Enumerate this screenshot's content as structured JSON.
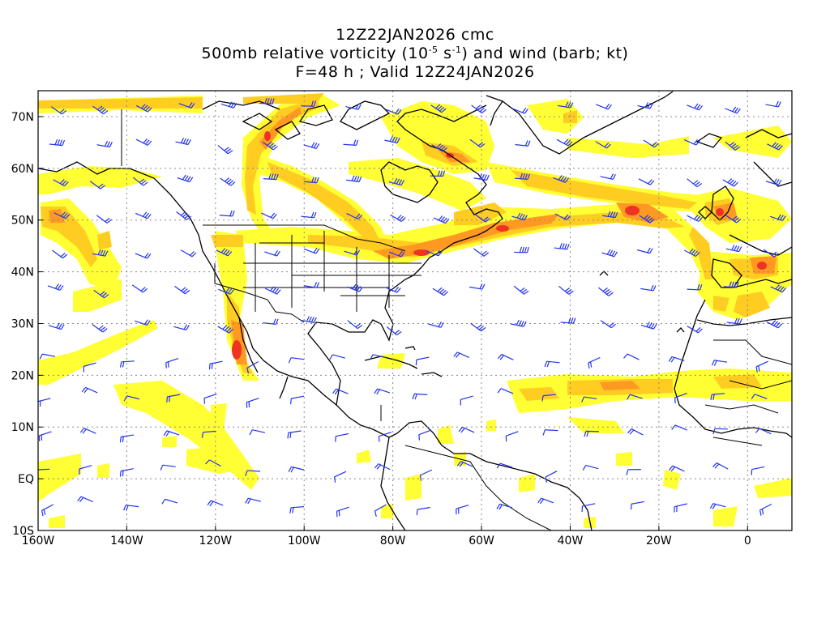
{
  "header": {
    "line1": "12Z22JAN2026 cmc",
    "line2_prefix": "500mb relative vorticity (10",
    "line2_exp1": "-5",
    "line2_mid": " s",
    "line2_exp2": "-1",
    "line2_suffix": ") and wind (barb; kt)",
    "line3": "F=48 h ; Valid 12Z24JAN2026"
  },
  "axes": {
    "lon_labels": [
      "160W",
      "140W",
      "120W",
      "100W",
      "80W",
      "60W",
      "40W",
      "20W",
      "0"
    ],
    "lat_labels": [
      "70N",
      "60N",
      "50N",
      "40N",
      "30N",
      "20N",
      "10N",
      "EQ",
      "10S"
    ],
    "lon_range": [
      -160,
      10
    ],
    "lat_range": [
      -10,
      75
    ]
  },
  "colors": {
    "vort_low": "#ffff33",
    "vort_mid": "#ffcc22",
    "vort_high": "#ff9922",
    "vort_max": "#ee3322",
    "coastline": "#000000",
    "barb": "#2233ee",
    "grid": "#888888"
  }
}
